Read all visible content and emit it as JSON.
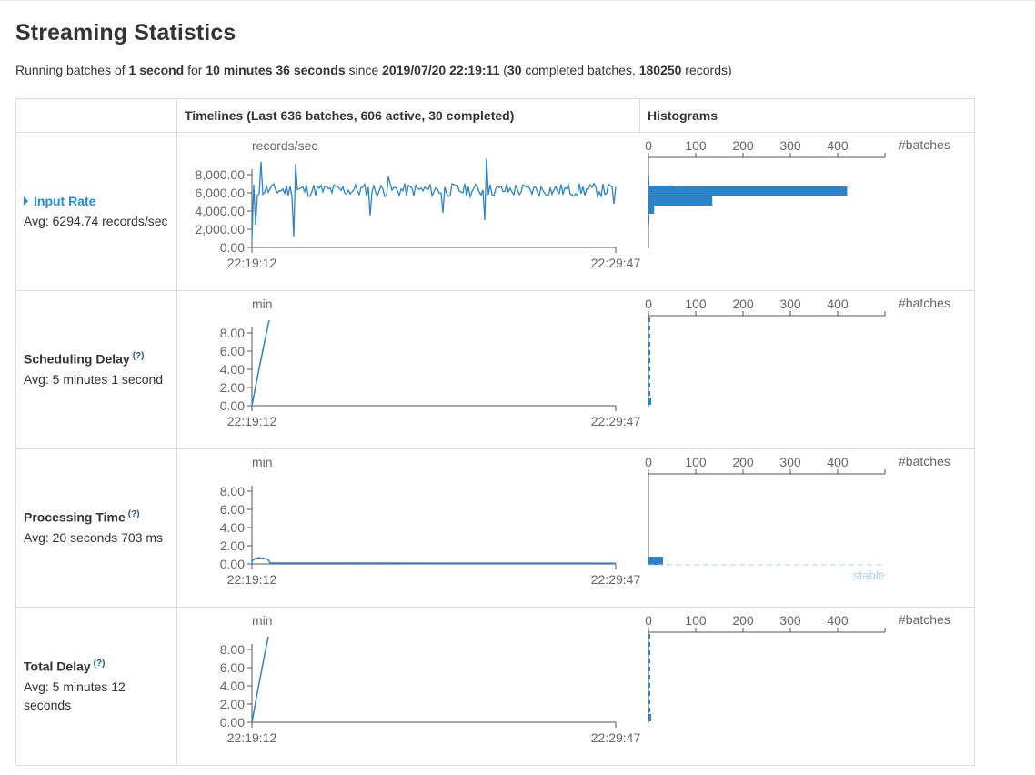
{
  "page": {
    "title": "Streaming Statistics",
    "summary": {
      "p1": "Running batches of ",
      "batch_interval": "1 second",
      "p2": " for ",
      "duration": "10 minutes 36 seconds",
      "p3": " since ",
      "start_time": "2019/07/20 22:19:11",
      "p4": " (",
      "completed_count": "30",
      "p5": " completed batches, ",
      "records": "180250",
      "p6": " records)"
    }
  },
  "table": {
    "timelines_header": "Timelines (Last 636 batches, 606 active, 30 completed)",
    "histograms_header": "Histograms"
  },
  "colors": {
    "accent": "#1f8bd6",
    "line": "#2a84c9",
    "stable": "#a9d3ec"
  },
  "icons": {
    "expand": "triangle-right-icon",
    "help": "question-mark"
  },
  "time_axis": {
    "start": "22:19:12",
    "end": "22:29:47"
  },
  "hist_axis": {
    "ticks": [
      "0",
      "100",
      "200",
      "300",
      "400"
    ],
    "label": "#batches"
  },
  "rows": [
    {
      "title": "Input Rate",
      "help": "",
      "avg": "Avg: 6294.74 records/sec",
      "unit": "records/sec",
      "yticks": [
        "8,000.00",
        "6,000.00",
        "4,000.00",
        "2,000.00",
        "0.00"
      ]
    },
    {
      "title": "Scheduling Delay",
      "help": "(?)",
      "avg": "Avg: 5 minutes 1 second",
      "unit": "min",
      "yticks": [
        "8.00",
        "6.00",
        "4.00",
        "2.00",
        "0.00"
      ]
    },
    {
      "title": "Processing Time",
      "help": "(?)",
      "avg": "Avg: 20 seconds 703 ms",
      "unit": "min",
      "yticks": [
        "8.00",
        "6.00",
        "4.00",
        "2.00",
        "0.00"
      ],
      "stable_label": "stable"
    },
    {
      "title": "Total Delay",
      "help": "(?)",
      "avg": "Avg: 5 minutes 12 seconds",
      "unit": "min",
      "yticks": [
        "8.00",
        "6.00",
        "4.00",
        "2.00",
        "0.00"
      ]
    }
  ]
}
